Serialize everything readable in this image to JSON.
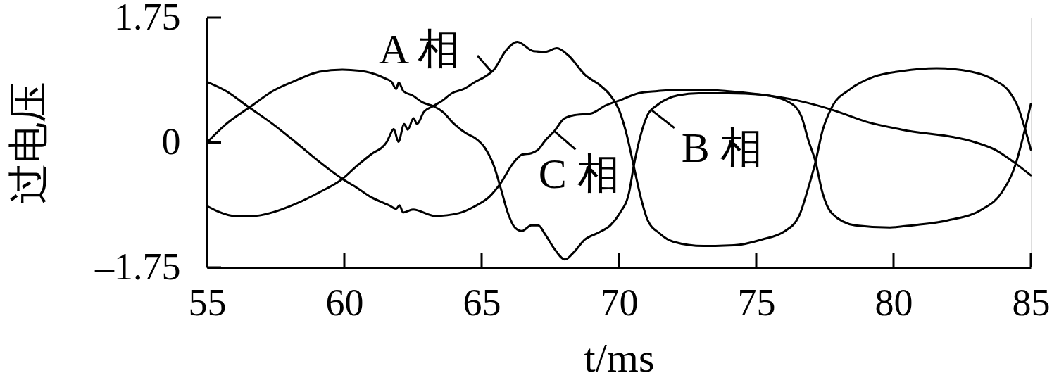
{
  "chart_data": {
    "type": "line",
    "xlabel": "t/ms",
    "ylabel": "过电压",
    "xlim": [
      55,
      85
    ],
    "ylim": [
      -1.75,
      1.75
    ],
    "xticks": [
      55,
      60,
      65,
      70,
      75,
      80,
      85
    ],
    "yticks": [
      {
        "value": -1.75,
        "label": "–1.75"
      },
      0,
      1.75
    ],
    "line_style": "solid",
    "series": [
      {
        "color": "#000000",
        "x": [
          55,
          55.36,
          56.03,
          56.7,
          57.38,
          58.23,
          59.08,
          59.93,
          60.45,
          60.96,
          61.55,
          61.66,
          61.8,
          61.97,
          62.18,
          62.31,
          62.52,
          62.65,
          62.9,
          63.24,
          63.58,
          63.92,
          64.35,
          64.77,
          65.11,
          65.45,
          65.87,
          66.3,
          66.89,
          67.32,
          67.74,
          68.16,
          68.76,
          69.35,
          69.69,
          70.03,
          70.29,
          70.54,
          70.79,
          71.05,
          71.47,
          71.98,
          73.08,
          74.19,
          75.2,
          76.05,
          76.56,
          76.9,
          77.16,
          77.41,
          77.75,
          78.43,
          79.28,
          80.3,
          81.57,
          82.84,
          83.69,
          84.2,
          84.54,
          84.79,
          85
        ],
        "values": [
          -0.89,
          -0.96,
          -1.03,
          -1.03,
          -0.98,
          -0.86,
          -0.7,
          -0.51,
          -0.33,
          -0.17,
          0.01,
          0.1,
          0.19,
          0.01,
          0.26,
          0.18,
          0.34,
          0.26,
          0.43,
          0.51,
          0.59,
          0.69,
          0.75,
          0.85,
          0.92,
          1.02,
          1.28,
          1.41,
          1.28,
          1.27,
          1.32,
          1.22,
          0.95,
          0.79,
          0.66,
          0.43,
          0.1,
          -0.33,
          -0.76,
          -1.09,
          -1.27,
          -1.39,
          -1.45,
          -1.44,
          -1.36,
          -1.24,
          -1.03,
          -0.63,
          -0.27,
          0.16,
          0.49,
          0.75,
          0.92,
          1.0,
          1.04,
          0.99,
          0.87,
          0.72,
          0.49,
          0.19,
          -0.1
        ]
      },
      {
        "color": "#000000",
        "x": [
          55,
          55.7,
          56.54,
          57.39,
          58.24,
          59.09,
          59.93,
          60.79,
          61.47,
          61.72,
          61.89,
          61.98,
          62.15,
          62.48,
          62.86,
          63.24,
          63.58,
          64.0,
          64.43,
          64.77,
          65.11,
          65.45,
          65.71,
          65.96,
          66.21,
          66.47,
          66.81,
          67.06,
          67.32,
          67.65,
          68.04,
          68.33,
          68.76,
          69.27,
          69.69,
          70.03,
          70.37,
          70.54,
          70.79,
          71.05,
          71.38,
          71.81,
          72.15,
          72.91,
          74.0,
          75.2,
          76.22,
          76.65,
          76.9,
          77.16,
          77.41,
          77.75,
          78.6,
          79.87,
          80.42,
          81.99,
          83.26,
          83.94,
          84.45,
          84.79,
          85
        ],
        "values": [
          0,
          0.26,
          0.49,
          0.72,
          0.87,
          0.99,
          1.02,
          0.99,
          0.9,
          0.85,
          0.75,
          0.84,
          0.72,
          0.66,
          0.56,
          0.51,
          0.43,
          0.26,
          0.13,
          0.06,
          -0.07,
          -0.33,
          -0.66,
          -0.99,
          -1.19,
          -1.24,
          -1.16,
          -1.16,
          -1.29,
          -1.49,
          -1.64,
          -1.55,
          -1.36,
          -1.26,
          -1.16,
          -0.99,
          -0.7,
          -0.33,
          0.1,
          0.39,
          0.52,
          0.62,
          0.66,
          0.69,
          0.69,
          0.67,
          0.56,
          0.36,
          0.03,
          -0.27,
          -0.7,
          -0.99,
          -1.16,
          -1.19,
          -1.17,
          -1.09,
          -0.93,
          -0.7,
          -0.3,
          0.19,
          0.54
        ]
      },
      {
        "color": "#000000",
        "x": [
          55,
          55.7,
          56.54,
          57.39,
          58.24,
          59.09,
          59.93,
          60.44,
          60.95,
          61.63,
          61.89,
          62.01,
          62.14,
          62.5,
          63.32,
          64.17,
          64.77,
          65.28,
          65.71,
          66.13,
          66.47,
          66.81,
          67.06,
          67.32,
          67.65,
          67.99,
          68.33,
          69.01,
          69.52,
          70.03,
          70.71,
          71.39,
          72.15,
          72.91,
          73.93,
          75.2,
          76.48,
          77.75,
          79.02,
          80.3,
          83.0,
          83.69,
          84.36,
          85
        ],
        "values": [
          0.85,
          0.72,
          0.49,
          0.26,
          0.0,
          -0.27,
          -0.51,
          -0.63,
          -0.76,
          -0.88,
          -0.93,
          -0.88,
          -0.98,
          -0.94,
          -1.03,
          -0.99,
          -0.89,
          -0.76,
          -0.56,
          -0.3,
          -0.17,
          -0.15,
          -0.1,
          0.03,
          0.16,
          0.33,
          0.38,
          0.41,
          0.52,
          0.59,
          0.69,
          0.72,
          0.74,
          0.74,
          0.72,
          0.67,
          0.59,
          0.46,
          0.29,
          0.18,
          0.0,
          -0.1,
          -0.27,
          -0.46
        ]
      }
    ],
    "annotations": [
      {
        "text": "A 相",
        "x": 65.36,
        "y": 0.99
      },
      {
        "text": "B 相",
        "x": 71.2,
        "y": 0.45
      },
      {
        "text": "C 相",
        "x": 67.65,
        "y": 0.16
      }
    ]
  }
}
